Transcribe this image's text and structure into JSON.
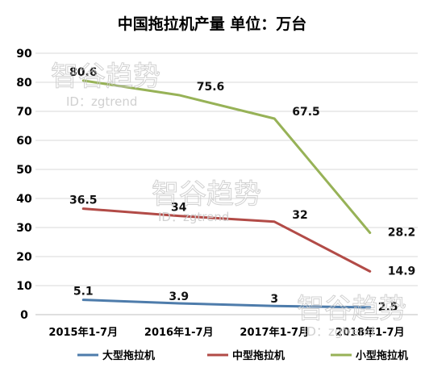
{
  "chart_data": {
    "type": "line",
    "title": "中国拖拉机产量 单位：万台",
    "categories": [
      "2015年1-7月",
      "2016年1-7月",
      "2017年1-7月",
      "2018年1-7月"
    ],
    "ylim": [
      0,
      90
    ],
    "yticks": [
      0,
      10,
      20,
      30,
      40,
      50,
      60,
      70,
      80,
      90
    ],
    "grid": true,
    "legend_position": "bottom",
    "series": [
      {
        "name": "大型拖拉机",
        "values": [
          5.1,
          3.9,
          3,
          2.5
        ],
        "labels": [
          "5.1",
          "3.9",
          "3",
          "2.5"
        ],
        "color": "#4e7cab"
      },
      {
        "name": "中型拖拉机",
        "values": [
          36.5,
          34,
          32,
          14.9
        ],
        "labels": [
          "36.5",
          "34",
          "32",
          "14.9"
        ],
        "color": "#b24b47"
      },
      {
        "name": "小型拖拉机",
        "values": [
          80.6,
          75.6,
          67.5,
          28.2
        ],
        "labels": [
          "80.6",
          "75.6",
          "67.5",
          "28.2"
        ],
        "color": "#97b257"
      }
    ]
  },
  "watermark": {
    "brand": "智谷趋势",
    "id": "ID：zgtrend"
  }
}
